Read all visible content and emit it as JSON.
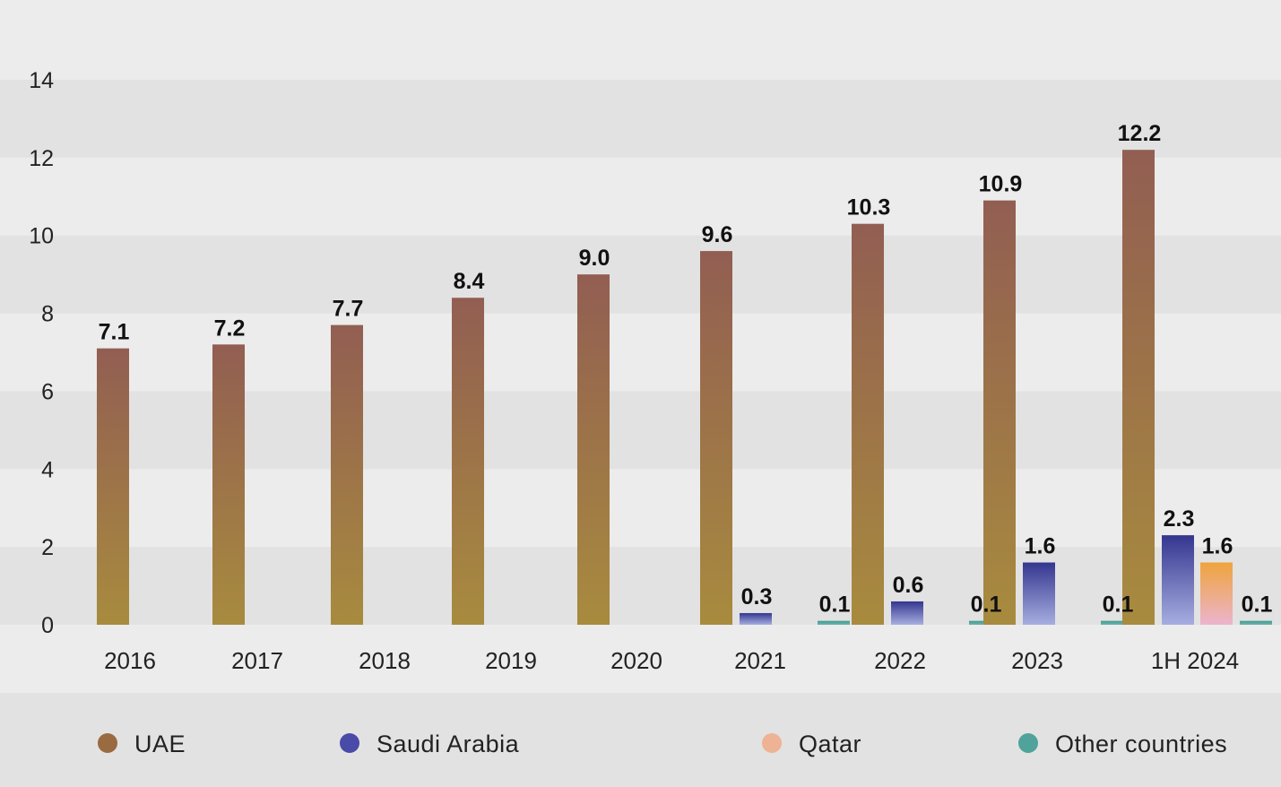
{
  "chart_data": {
    "type": "bar",
    "title": "",
    "xlabel": "",
    "ylabel": "",
    "ylim": [
      0,
      14
    ],
    "y_ticks": [
      0,
      2,
      4,
      6,
      8,
      10,
      12,
      14
    ],
    "grid": true,
    "legend_position": "bottom",
    "categories": [
      "2016",
      "2017",
      "2018",
      "2019",
      "2020",
      "2021",
      "2022",
      "2023",
      "1H 2024"
    ],
    "series": [
      {
        "name": "UAE",
        "colors": {
          "top": "#925e52",
          "bottom": "#a88b3e",
          "swatch": "#9a6a40"
        },
        "values": [
          7.1,
          7.2,
          7.7,
          8.4,
          9.0,
          9.6,
          10.3,
          10.9,
          12.2
        ],
        "labels": [
          "7.1",
          "7.2",
          "7.7",
          "8.4",
          "9.0",
          "9.6",
          "10.3",
          "10.9",
          "12.2"
        ]
      },
      {
        "name": "Saudi Arabia",
        "colors": {
          "top": "#34368f",
          "bottom": "#a6aee0",
          "swatch": "#4a4aa8"
        },
        "values": [
          null,
          null,
          null,
          null,
          null,
          0.3,
          0.6,
          1.6,
          2.3
        ],
        "labels": [
          null,
          null,
          null,
          null,
          null,
          "0.3",
          "0.6",
          "1.6",
          "2.3"
        ]
      },
      {
        "name": "Qatar",
        "colors": {
          "top": "#efa43d",
          "bottom": "#ecb4ce",
          "swatch": "#eeb295"
        },
        "values": [
          null,
          null,
          null,
          null,
          null,
          null,
          null,
          null,
          1.6
        ],
        "labels": [
          null,
          null,
          null,
          null,
          null,
          null,
          null,
          null,
          "1.6"
        ]
      },
      {
        "name": "Other countries",
        "colors": {
          "top": "#3f9b92",
          "bottom": "#6fb4aa",
          "swatch": "#4fa39a"
        },
        "values": [
          null,
          null,
          null,
          null,
          null,
          0.1,
          0.1,
          0.1,
          0.1
        ],
        "labels": [
          null,
          null,
          null,
          null,
          null,
          "0.1",
          "0.1",
          "0.1",
          "0.1"
        ]
      }
    ]
  }
}
